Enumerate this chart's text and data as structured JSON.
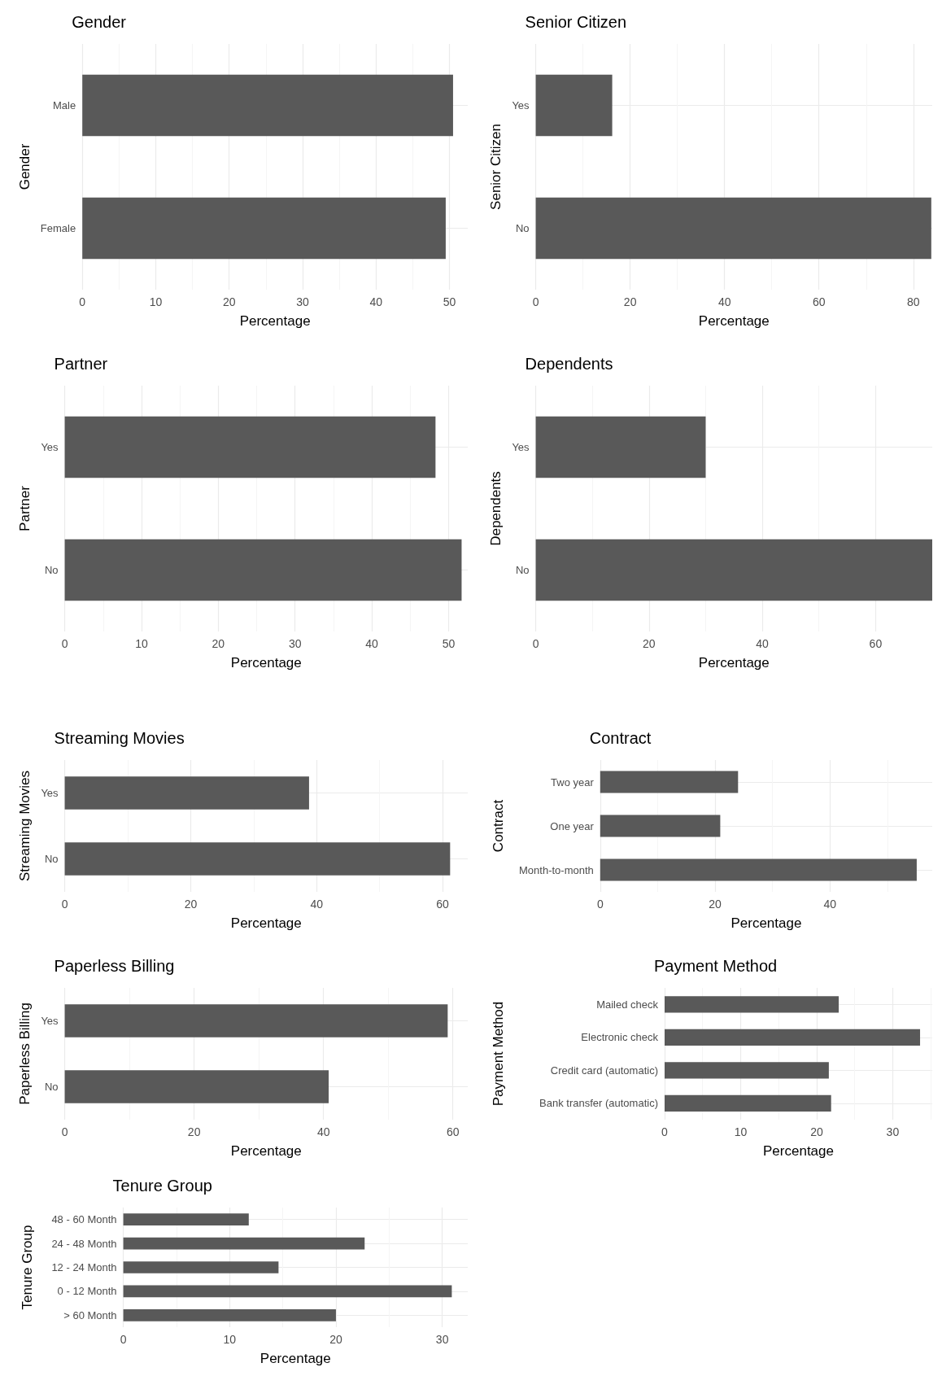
{
  "chart_data": [
    {
      "type": "bar",
      "orientation": "horizontal",
      "title": "Gender",
      "xlabel": "Percentage",
      "ylabel": "Gender",
      "categories": [
        "Male",
        "Female"
      ],
      "values": [
        50.5,
        49.5
      ],
      "color": "#595959",
      "xlim": [
        0,
        52.5
      ],
      "xticks": [
        0,
        10,
        20,
        30,
        40,
        50
      ],
      "grid": true
    },
    {
      "type": "bar",
      "orientation": "horizontal",
      "title": "Senior Citizen",
      "xlabel": "Percentage",
      "ylabel": "Senior Citizen",
      "categories": [
        "Yes",
        "No"
      ],
      "values": [
        16.2,
        83.8
      ],
      "color": "#595959",
      "xlim": [
        0,
        84
      ],
      "xticks": [
        0,
        20,
        40,
        60,
        80
      ],
      "grid": true
    },
    {
      "type": "bar",
      "orientation": "horizontal",
      "title": "Partner",
      "xlabel": "Percentage",
      "ylabel": "Partner",
      "categories": [
        "Yes",
        "No"
      ],
      "values": [
        48.3,
        51.7
      ],
      "color": "#595959",
      "xlim": [
        0,
        52.5
      ],
      "xticks": [
        0,
        10,
        20,
        30,
        40,
        50
      ],
      "grid": true
    },
    {
      "type": "bar",
      "orientation": "horizontal",
      "title": "Dependents",
      "xlabel": "Percentage",
      "ylabel": "Dependents",
      "categories": [
        "Yes",
        "No"
      ],
      "values": [
        30,
        70
      ],
      "color": "#595959",
      "xlim": [
        0,
        70
      ],
      "xticks": [
        0,
        20,
        40,
        60
      ],
      "grid": true
    },
    {
      "type": "bar",
      "orientation": "horizontal",
      "title": "Streaming Movies",
      "xlabel": "Percentage",
      "ylabel": "Streaming Movies",
      "categories": [
        "Yes",
        "No"
      ],
      "values": [
        38.8,
        61.2
      ],
      "color": "#595959",
      "xlim": [
        0,
        64
      ],
      "xticks": [
        0,
        20,
        40,
        60
      ],
      "grid": true
    },
    {
      "type": "bar",
      "orientation": "horizontal",
      "title": "Contract",
      "xlabel": "Percentage",
      "ylabel": "Contract",
      "categories": [
        "Two year",
        "One year",
        "Month-to-month"
      ],
      "values": [
        24,
        20.9,
        55.1
      ],
      "color": "#595959",
      "xlim": [
        0,
        57.8
      ],
      "xticks": [
        0,
        20,
        40
      ],
      "grid": true
    },
    {
      "type": "bar",
      "orientation": "horizontal",
      "title": "Paperless Billing",
      "xlabel": "Percentage",
      "ylabel": "Paperless Billing",
      "categories": [
        "Yes",
        "No"
      ],
      "values": [
        59.2,
        40.8
      ],
      "color": "#595959",
      "xlim": [
        0,
        62.3
      ],
      "xticks": [
        0,
        20,
        40,
        60
      ],
      "grid": true
    },
    {
      "type": "bar",
      "orientation": "horizontal",
      "title": "Payment Method",
      "xlabel": "Percentage",
      "ylabel": "Payment Method",
      "categories": [
        "Mailed check",
        "Electronic check",
        "Credit card (automatic)",
        "Bank transfer (automatic)"
      ],
      "values": [
        22.9,
        33.6,
        21.6,
        21.9
      ],
      "color": "#595959",
      "xlim": [
        0,
        35.2
      ],
      "xticks": [
        0,
        10,
        20,
        30
      ],
      "grid": true
    },
    {
      "type": "bar",
      "orientation": "horizontal",
      "title": "Tenure Group",
      "xlabel": "Percentage",
      "ylabel": "Tenure Group",
      "categories": [
        "48 - 60 Month",
        "24 - 48 Month",
        "12 - 24 Month",
        "0 - 12 Month",
        "> 60 Month"
      ],
      "values": [
        11.8,
        22.7,
        14.6,
        30.9,
        20
      ],
      "color": "#595959",
      "xlim": [
        0,
        32.4
      ],
      "xticks": [
        0,
        10,
        20,
        30
      ],
      "grid": true
    }
  ]
}
